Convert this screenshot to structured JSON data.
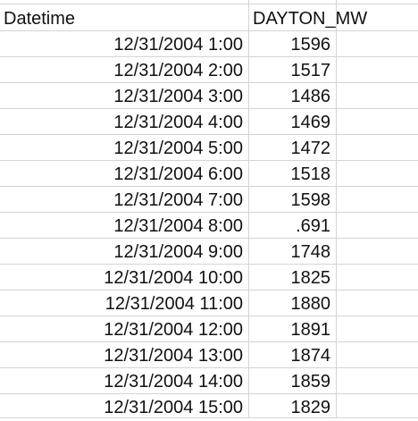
{
  "sheet": {
    "headers": {
      "a": "Datetime",
      "b": "DAYTON_MW"
    },
    "rows": [
      {
        "datetime": "12/31/2004 1:00",
        "value": "1596"
      },
      {
        "datetime": "12/31/2004 2:00",
        "value": "1517"
      },
      {
        "datetime": "12/31/2004 3:00",
        "value": "1486"
      },
      {
        "datetime": "12/31/2004 4:00",
        "value": "1469"
      },
      {
        "datetime": "12/31/2004 5:00",
        "value": "1472"
      },
      {
        "datetime": "12/31/2004 6:00",
        "value": "1518"
      },
      {
        "datetime": "12/31/2004 7:00",
        "value": "1598"
      },
      {
        "datetime": "12/31/2004 8:00",
        "value": ".691"
      },
      {
        "datetime": "12/31/2004 9:00",
        "value": "1748"
      },
      {
        "datetime": "12/31/2004 10:00",
        "value": "1825"
      },
      {
        "datetime": "12/31/2004 11:00",
        "value": "1880"
      },
      {
        "datetime": "12/31/2004 12:00",
        "value": "1891"
      },
      {
        "datetime": "12/31/2004 13:00",
        "value": "1874"
      },
      {
        "datetime": "12/31/2004 14:00",
        "value": "1859"
      },
      {
        "datetime": "12/31/2004 15:00",
        "value": "1829"
      }
    ]
  }
}
